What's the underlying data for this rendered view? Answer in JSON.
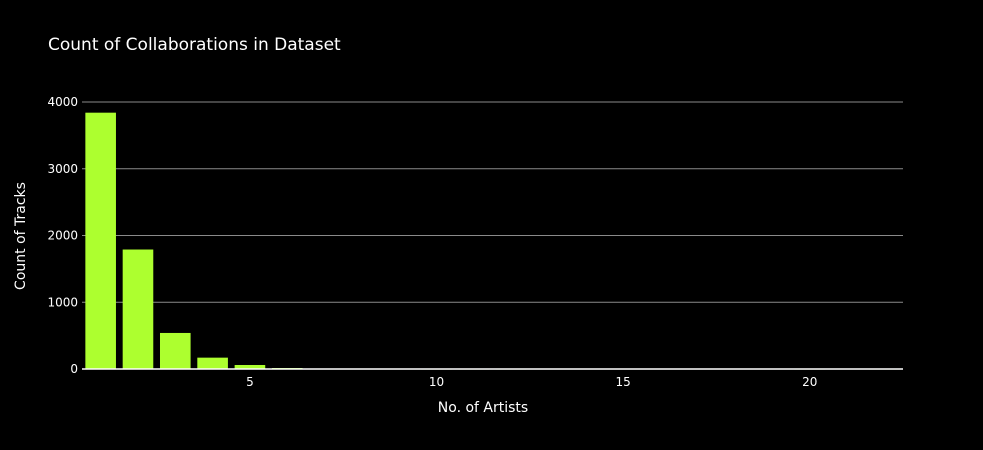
{
  "chart_data": {
    "type": "bar",
    "title": "Count of Collaborations in Dataset",
    "xlabel": "No. of Artists",
    "ylabel": "Count of Tracks",
    "x": [
      1,
      2,
      3,
      4,
      5,
      6,
      7,
      8,
      9,
      10,
      11,
      12,
      13,
      14,
      15,
      16,
      17,
      18,
      19,
      20,
      21,
      22
    ],
    "values": [
      3840,
      1790,
      540,
      170,
      60,
      15,
      6,
      3,
      2,
      1,
      1,
      1,
      0,
      0,
      0,
      0,
      0,
      0,
      0,
      1,
      0,
      1
    ],
    "xlim": [
      0.5,
      22.5
    ],
    "ylim": [
      0,
      4000
    ],
    "xticks": [
      5,
      10,
      15,
      20
    ],
    "yticks": [
      0,
      1000,
      2000,
      3000,
      4000
    ],
    "grid": true,
    "legend": "none",
    "bar_color": "#adff2f",
    "background": "#000000"
  }
}
